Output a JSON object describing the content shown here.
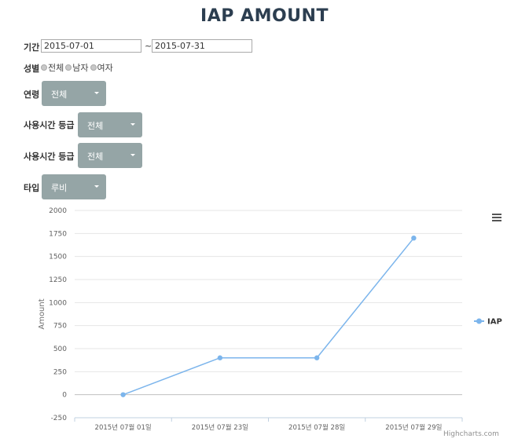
{
  "page": {
    "title": "IAP AMOUNT"
  },
  "filters": {
    "period": {
      "label": "기간",
      "from": "2015-07-01",
      "separator": "~",
      "to": "2015-07-31"
    },
    "gender": {
      "label": "성별",
      "options": [
        {
          "label": "전체"
        },
        {
          "label": "남자"
        },
        {
          "label": "여자"
        }
      ]
    },
    "age": {
      "label": "연령",
      "selected": "전체"
    },
    "usage_grade_1": {
      "label": "사용시간 등급",
      "selected": "전체"
    },
    "usage_grade_2": {
      "label": "사용시간 등급",
      "selected": "전체"
    },
    "type": {
      "label": "타입",
      "selected": "루비"
    }
  },
  "chart_data": {
    "type": "line",
    "title": "",
    "xlabel": "",
    "ylabel": "Amount",
    "categories": [
      "2015년 07월 01일",
      "2015년 07월 23일",
      "2015년 07월 28일",
      "2015년 07월 29일"
    ],
    "series": [
      {
        "name": "IAP",
        "values": [
          0,
          400,
          400,
          1700
        ],
        "color": "#7cb5ec"
      }
    ],
    "ylim": [
      -250,
      2000
    ],
    "yticks": [
      -250,
      0,
      250,
      500,
      750,
      1000,
      1250,
      1500,
      1750,
      2000
    ],
    "grid": true,
    "legend": "right"
  },
  "credits": "Highcharts.com",
  "colors": {
    "accent": "#2c3e50",
    "dropdown": "#95a5a6",
    "series": "#7cb5ec"
  }
}
